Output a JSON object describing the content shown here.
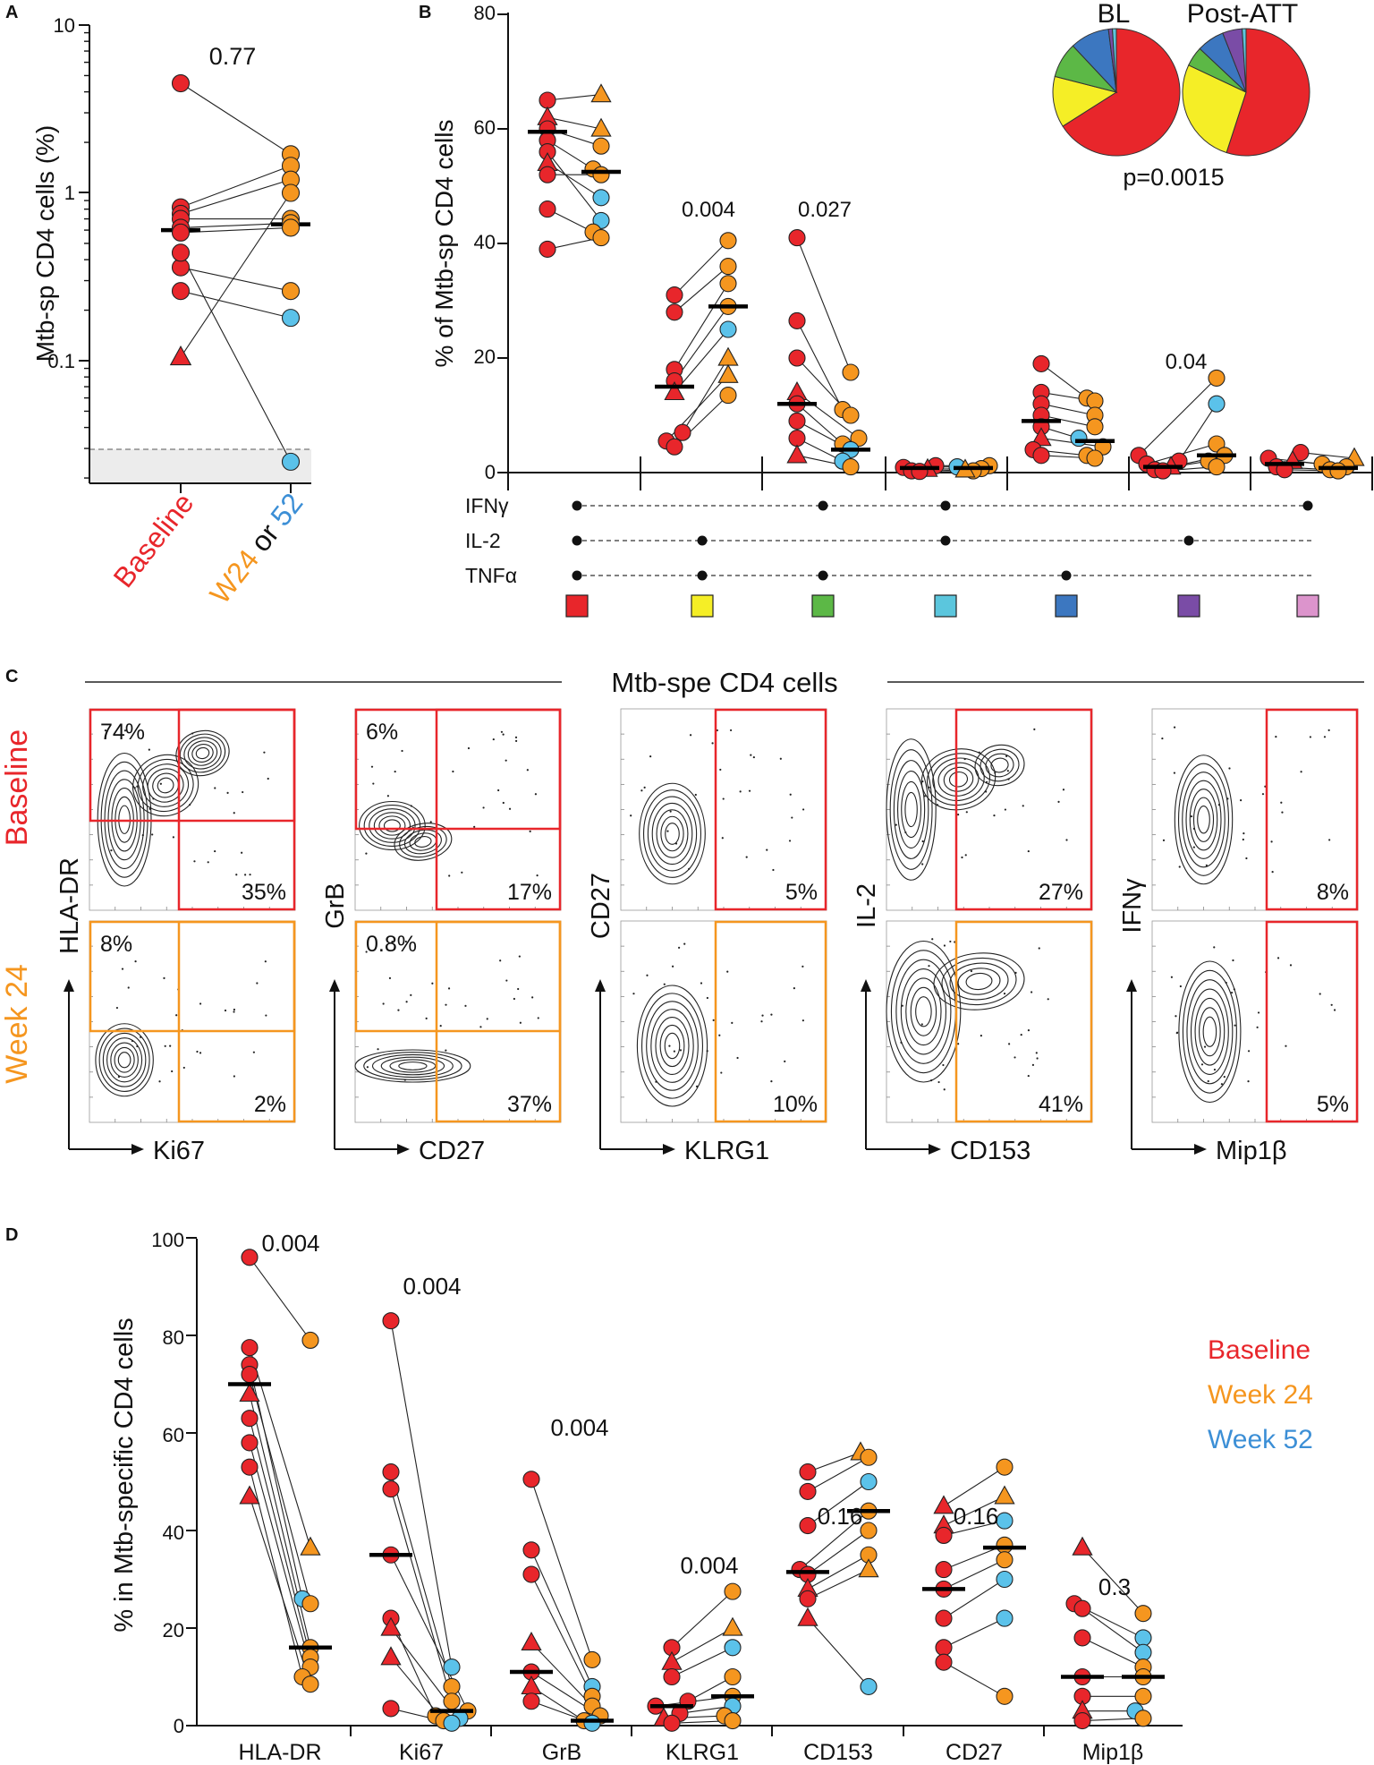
{
  "colors": {
    "baseline": "#e8262b",
    "week24": "#f5961f",
    "week52": "#5bc2ea",
    "legend_w52": "#3c8fd6",
    "c_all": "#e8262b",
    "c_yellow": "#f5ee26",
    "c_green": "#5cb846",
    "c_cyan": "#5bc6dd",
    "c_blue": "#3c77c0",
    "c_purple": "#7a4ca6",
    "c_pink": "#dc94cc"
  },
  "panels": {
    "a": "A",
    "b": "B",
    "c": "C",
    "d": "D"
  },
  "panel_a": {
    "ylabel": "Mtb-sp CD4 cells (%)",
    "ticks": [
      "10",
      "1",
      "0.1"
    ],
    "pvalue": "0.77",
    "x_baseline": "Baseline",
    "x_w24": "W24",
    "x_or": "or",
    "x_52": "52"
  },
  "panel_b": {
    "ylabel": "% of Mtb-sp CD4 cells",
    "ticks": [
      "80",
      "60",
      "40",
      "20",
      "0"
    ],
    "pvalues": [
      "0.004",
      "0.027",
      "0.04"
    ],
    "pie_bl_title": "BL",
    "pie_post_title": "Post-ATT",
    "pie_pvalue": "p=0.0015",
    "row_ifng": "IFNγ",
    "row_il2": "IL-2",
    "row_tnfa": "TNFα"
  },
  "panel_c": {
    "title": "Mtb-spe CD4 cells",
    "row_baseline": "Baseline",
    "row_week24": "Week 24",
    "plots": [
      {
        "ylabel": "HLA-DR",
        "xlabel": "Ki67",
        "top_ul": "74%",
        "top_lr": "35%",
        "bot_ul": "8%",
        "bot_lr": "2%"
      },
      {
        "ylabel": "GrB",
        "xlabel": "CD27",
        "top_ul": "6%",
        "top_lr": "17%",
        "bot_ul": "0.8%",
        "bot_lr": "37%"
      },
      {
        "ylabel": "CD27",
        "xlabel": "KLRG1",
        "top_lr": "5%",
        "bot_lr": "10%"
      },
      {
        "ylabel": "IL-2",
        "xlabel": "CD153",
        "top_lr": "27%",
        "bot_lr": "41%"
      },
      {
        "ylabel": "IFNγ",
        "xlabel": "Mip1β",
        "top_lr": "8%",
        "bot_lr": "5%"
      }
    ]
  },
  "panel_d": {
    "ylabel": "% in Mtb-specific CD4 cells",
    "ticks": [
      "100",
      "80",
      "60",
      "40",
      "20",
      "0"
    ],
    "legend_baseline": "Baseline",
    "legend_week24": "Week 24",
    "legend_week52": "Week 52"
  },
  "chart_data": [
    {
      "panel": "A",
      "type": "scatter",
      "ylabel": "Mtb-sp CD4 cells (%)",
      "yscale": "log",
      "ylim": [
        0.02,
        10
      ],
      "categories": [
        "Baseline",
        "W24 or 52"
      ],
      "pvalue": "0.77",
      "median": [
        0.6,
        0.65
      ],
      "pairs": [
        [
          4.5,
          1.7,
          "c",
          "o"
        ],
        [
          0.82,
          1.45,
          "c",
          "o"
        ],
        [
          0.75,
          1.2,
          "c",
          "o"
        ],
        [
          0.7,
          0.7,
          "c",
          "o"
        ],
        [
          0.62,
          0.66,
          "c",
          "o"
        ],
        [
          0.58,
          0.62,
          "c",
          "o"
        ],
        [
          0.36,
          0.26,
          "c",
          "o"
        ],
        [
          0.26,
          0.18,
          "c",
          "b"
        ],
        [
          0.44,
          0.025,
          "c",
          "b"
        ],
        [
          0.105,
          1.0,
          "t",
          "o"
        ]
      ]
    },
    {
      "panel": "B",
      "type": "scatter",
      "ylabel": "% of Mtb-sp CD4 cells",
      "ylim": [
        0,
        80
      ],
      "categories": [
        "IFNγ+IL-2+TNFα+",
        "IL-2+TNFα+",
        "IFNγ+TNFα+",
        "IFNγ+IL-2+",
        "TNFα+",
        "IL-2+",
        "IFNγ+"
      ],
      "category_colors": [
        "#e8262b",
        "#f5ee26",
        "#5cb846",
        "#5bc6dd",
        "#3c77c0",
        "#7a4ca6",
        "#dc94cc"
      ],
      "pvalues": [
        "",
        "0.004",
        "0.027",
        "",
        "",
        "0.04",
        ""
      ],
      "groups": [
        {
          "median": [
            59.5,
            52.5
          ],
          "pairs": [
            [
              65,
              66,
              "c",
              "ot"
            ],
            [
              62,
              60,
              "t",
              "ot"
            ],
            [
              60,
              57,
              "c",
              "o"
            ],
            [
              58,
              53,
              "c",
              "o"
            ],
            [
              56,
              44,
              "c",
              "b"
            ],
            [
              54,
              48,
              "t",
              "b"
            ],
            [
              52,
              52,
              "c",
              "o"
            ],
            [
              46,
              42,
              "c",
              "o"
            ],
            [
              39,
              41,
              "c",
              "o"
            ]
          ]
        },
        {
          "median": [
            15,
            29
          ],
          "pairs": [
            [
              31,
              40.5,
              "c",
              "o"
            ],
            [
              28,
              36,
              "c",
              "o"
            ],
            [
              18,
              33,
              "c",
              "o"
            ],
            [
              16,
              29,
              "c",
              "o"
            ],
            [
              14,
              25,
              "t",
              "b"
            ],
            [
              7,
              20,
              "c",
              "ot"
            ],
            [
              5.5,
              17,
              "c",
              "ot"
            ],
            [
              4.5,
              13.5,
              "c",
              "o"
            ]
          ]
        },
        {
          "median": [
            12,
            4
          ],
          "pairs": [
            [
              41,
              17.5,
              "c",
              "o"
            ],
            [
              26.5,
              11,
              "c",
              "o"
            ],
            [
              20,
              10,
              "c",
              "o"
            ],
            [
              14,
              6,
              "t",
              "o"
            ],
            [
              12,
              5,
              "c",
              "o"
            ],
            [
              9,
              4,
              "c",
              "b"
            ],
            [
              6,
              2,
              "c",
              "b"
            ],
            [
              3,
              1,
              "t",
              "o"
            ]
          ]
        },
        {
          "median": [
            0.8,
            0.8
          ],
          "pairs": [
            [
              1.2,
              1.2,
              "c",
              "o"
            ],
            [
              0.9,
              1,
              "c",
              "b"
            ],
            [
              0.6,
              0.7,
              "t",
              "o"
            ],
            [
              0.3,
              0.3,
              "c",
              "o"
            ],
            [
              0.2,
              0.5,
              "c",
              "ot"
            ]
          ]
        },
        {
          "median": [
            9,
            5.5
          ],
          "pairs": [
            [
              19,
              13,
              "c",
              "o"
            ],
            [
              14,
              12.5,
              "c",
              "o"
            ],
            [
              12,
              10,
              "c",
              "o"
            ],
            [
              10,
              8,
              "c",
              "o"
            ],
            [
              8,
              6,
              "c",
              "b"
            ],
            [
              6,
              4.5,
              "t",
              "o"
            ],
            [
              4,
              3,
              "c",
              "o"
            ],
            [
              3,
              2.5,
              "c",
              "o"
            ]
          ]
        },
        {
          "median": [
            1,
            3
          ],
          "pairs": [
            [
              3,
              16.5,
              "c",
              "o"
            ],
            [
              2,
              12,
              "c",
              "b"
            ],
            [
              1.5,
              5,
              "c",
              "o"
            ],
            [
              1,
              3,
              "t",
              "o"
            ],
            [
              0.5,
              2,
              "c",
              "o"
            ],
            [
              0.3,
              1,
              "c",
              "o"
            ]
          ]
        },
        {
          "median": [
            1.5,
            0.8
          ],
          "pairs": [
            [
              3.5,
              2.5,
              "c",
              "ot"
            ],
            [
              2.5,
              1.5,
              "c",
              "o"
            ],
            [
              2,
              1,
              "t",
              "o"
            ],
            [
              1,
              0.5,
              "c",
              "o"
            ],
            [
              0.5,
              0.3,
              "c",
              "o"
            ]
          ]
        }
      ]
    },
    {
      "panel": "B-inset",
      "type": "pie",
      "series": [
        {
          "name": "BL",
          "slices": [
            {
              "color": "#e8262b",
              "value": 66
            },
            {
              "color": "#f5ee26",
              "value": 13
            },
            {
              "color": "#5cb846",
              "value": 9
            },
            {
              "color": "#3c77c0",
              "value": 10
            },
            {
              "color": "#7a4ca6",
              "value": 1
            },
            {
              "color": "#5bc6dd",
              "value": 1
            }
          ]
        },
        {
          "name": "Post-ATT",
          "slices": [
            {
              "color": "#e8262b",
              "value": 55
            },
            {
              "color": "#f5ee26",
              "value": 27
            },
            {
              "color": "#5cb846",
              "value": 5
            },
            {
              "color": "#3c77c0",
              "value": 7
            },
            {
              "color": "#7a4ca6",
              "value": 5
            },
            {
              "color": "#5bc6dd",
              "value": 1
            }
          ]
        }
      ],
      "pvalue": "p=0.0015"
    },
    {
      "panel": "D",
      "type": "scatter",
      "ylabel": "% in Mtb-specific CD4 cells",
      "ylim": [
        0,
        100
      ],
      "categories": [
        "HLA-DR",
        "Ki67",
        "GrB",
        "KLRG1",
        "CD153",
        "CD27",
        "Mip1β"
      ],
      "pvalues": [
        "0.004",
        "0.004",
        "0.004",
        "0.004",
        "0.16",
        "0.16",
        "0.3"
      ],
      "groups": [
        {
          "median": [
            70,
            16
          ],
          "pairs": [
            [
              96,
              79,
              "c",
              "o"
            ],
            [
              77.5,
              36.5,
              "c",
              "ot"
            ],
            [
              74,
              26,
              "c",
              "b"
            ],
            [
              72,
              25,
              "c",
              "o"
            ],
            [
              68,
              16,
              "t",
              "o"
            ],
            [
              63,
              14,
              "c",
              "o"
            ],
            [
              58,
              12,
              "c",
              "o"
            ],
            [
              53,
              10,
              "c",
              "o"
            ],
            [
              47,
              8.5,
              "t",
              "o"
            ]
          ]
        },
        {
          "median": [
            35,
            3
          ],
          "pairs": [
            [
              83,
              12,
              "c",
              "b"
            ],
            [
              52,
              8,
              "c",
              "o"
            ],
            [
              48.5,
              5,
              "c",
              "o"
            ],
            [
              35,
              3,
              "c",
              "o"
            ],
            [
              22,
              2,
              "c",
              "o"
            ],
            [
              20,
              1.5,
              "t",
              "b"
            ],
            [
              14,
              1,
              "t",
              "o"
            ],
            [
              3.5,
              0.5,
              "c",
              "b"
            ]
          ]
        },
        {
          "median": [
            11,
            1
          ],
          "pairs": [
            [
              50.5,
              13.5,
              "c",
              "o"
            ],
            [
              36,
              8,
              "c",
              "b"
            ],
            [
              31,
              6,
              "c",
              "o"
            ],
            [
              17,
              4,
              "t",
              "o"
            ],
            [
              11,
              2,
              "c",
              "o"
            ],
            [
              8,
              1,
              "t",
              "o"
            ],
            [
              5,
              0.5,
              "c",
              "b"
            ]
          ]
        },
        {
          "median": [
            4,
            6
          ],
          "pairs": [
            [
              16,
              27.5,
              "c",
              "o"
            ],
            [
              13,
              20,
              "t",
              "ot"
            ],
            [
              10,
              16,
              "c",
              "b"
            ],
            [
              5,
              10,
              "c",
              "o"
            ],
            [
              4,
              6,
              "c",
              "o"
            ],
            [
              2.5,
              4,
              "c",
              "b"
            ],
            [
              1.5,
              2,
              "t",
              "o"
            ],
            [
              0.5,
              1,
              "c",
              "o"
            ]
          ]
        },
        {
          "median": [
            31.5,
            44
          ],
          "pairs": [
            [
              52,
              56,
              "c",
              "ot"
            ],
            [
              48,
              55,
              "c",
              "o"
            ],
            [
              41,
              50,
              "c",
              "b"
            ],
            [
              32,
              44,
              "c",
              "o"
            ],
            [
              31,
              40,
              "c",
              "o"
            ],
            [
              28,
              35,
              "t",
              "o"
            ],
            [
              26,
              32,
              "c",
              "ot"
            ],
            [
              22,
              8,
              "t",
              "b"
            ]
          ]
        },
        {
          "median": [
            28,
            36.5
          ],
          "pairs": [
            [
              45,
              53,
              "t",
              "o"
            ],
            [
              41,
              47,
              "t",
              "ot"
            ],
            [
              39,
              42,
              "c",
              "b"
            ],
            [
              32,
              37,
              "c",
              "o"
            ],
            [
              28,
              34,
              "c",
              "o"
            ],
            [
              22,
              30,
              "c",
              "b"
            ],
            [
              16,
              22,
              "c",
              "b"
            ],
            [
              13,
              6,
              "c",
              "o"
            ]
          ]
        },
        {
          "median": [
            10,
            10
          ],
          "pairs": [
            [
              36.5,
              23,
              "t",
              "o"
            ],
            [
              25,
              18,
              "c",
              "b"
            ],
            [
              24,
              15,
              "c",
              "b"
            ],
            [
              18,
              12,
              "c",
              "o"
            ],
            [
              10,
              10,
              "c",
              "o"
            ],
            [
              6,
              6,
              "c",
              "o"
            ],
            [
              3,
              3,
              "t",
              "b"
            ],
            [
              1,
              1.5,
              "c",
              "o"
            ]
          ]
        }
      ]
    }
  ]
}
